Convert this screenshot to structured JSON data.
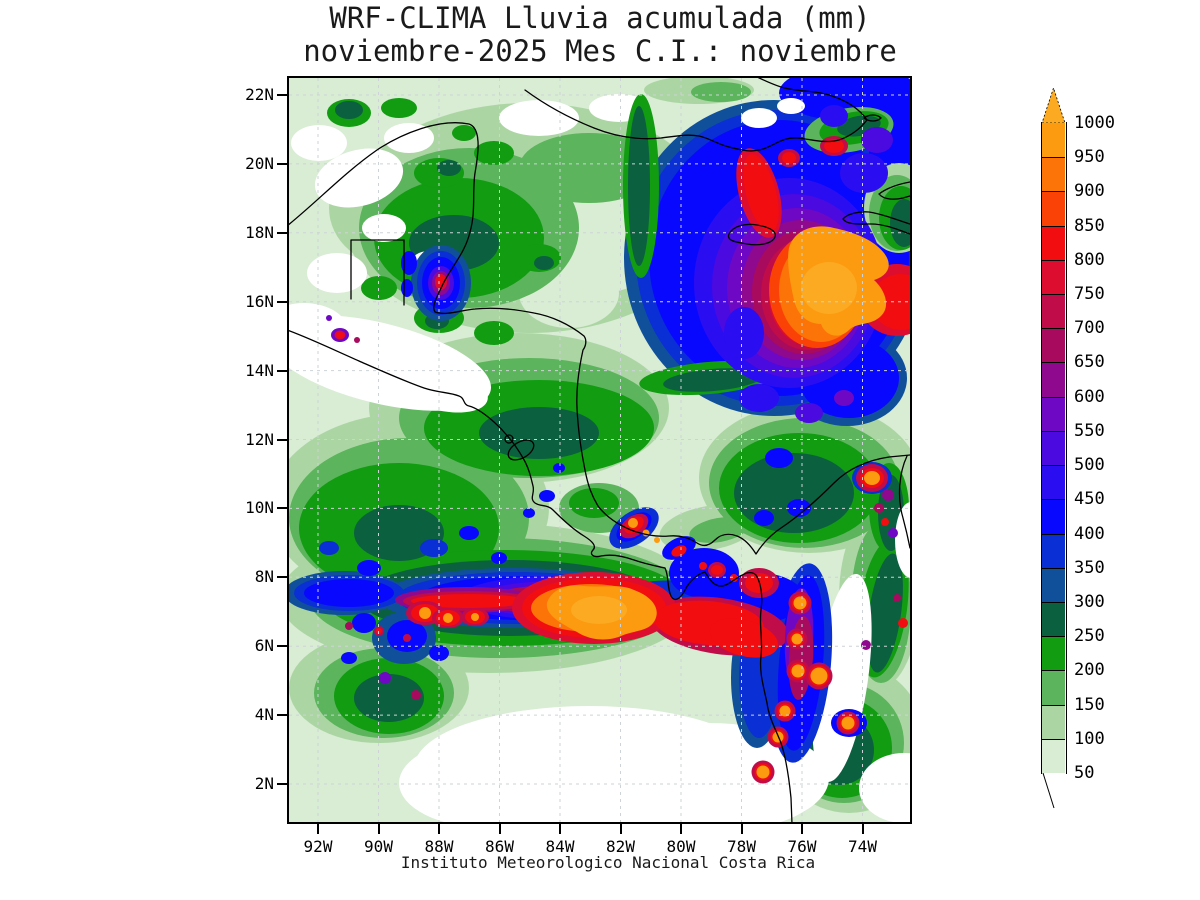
{
  "title": {
    "line1": "WRF-CLIMA Lluvia acumulada (mm)",
    "line2": "noviembre-2025 Mes C.I.: noviembre"
  },
  "footer": "Instituto Meteorologico Nacional Costa Rica",
  "axes": {
    "lat_tick_labels": [
      "22N",
      "20N",
      "18N",
      "16N",
      "14N",
      "12N",
      "10N",
      "8N",
      "6N",
      "4N",
      "2N"
    ],
    "lon_tick_labels": [
      "92W",
      "90W",
      "88W",
      "86W",
      "84W",
      "82W",
      "80W",
      "78W",
      "76W",
      "74W"
    ]
  },
  "colorbar": {
    "units": "mm",
    "tick_labels": [
      "1000",
      "950",
      "900",
      "850",
      "800",
      "750",
      "700",
      "650",
      "600",
      "550",
      "500",
      "450",
      "400",
      "350",
      "300",
      "250",
      "200",
      "150",
      "100",
      "50"
    ],
    "precip_levels_mm": [
      50,
      100,
      150,
      200,
      250,
      300,
      350,
      400,
      450,
      500,
      550,
      600,
      650,
      700,
      750,
      800,
      850,
      900,
      950,
      1000
    ],
    "arrow_color": "#fbaa22",
    "segment_colors_top_to_bottom": [
      "#fc9a10",
      "#fc7307",
      "#fb4206",
      "#f20d10",
      "#dd0d30",
      "#c00c48",
      "#a80a5e",
      "#8f098f",
      "#6e08c4",
      "#4a0ae0",
      "#2b0df2",
      "#0808ff",
      "#0a2fd4",
      "#10509b",
      "#0b6040",
      "#119c11",
      "#5cb45c",
      "#abd6a3",
      "#d9ecd4"
    ]
  }
}
